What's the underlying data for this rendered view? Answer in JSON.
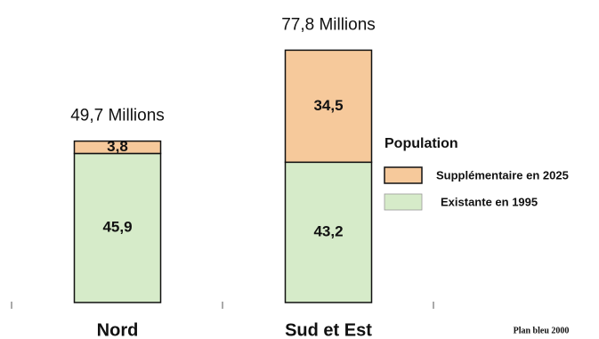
{
  "chart_data": {
    "type": "stacked_bar",
    "categories": [
      "Nord",
      "Sud et Est"
    ],
    "series": [
      {
        "name": "Existante en 1995",
        "color": "#d6ebc9",
        "values": [
          45.9,
          43.2
        ],
        "value_labels": [
          "45,9",
          "43,2"
        ]
      },
      {
        "name": "Supplémentaire en 2025",
        "color": "#f6c99b",
        "values": [
          3.8,
          34.5
        ],
        "value_labels": [
          "3,8",
          "34,5"
        ]
      }
    ],
    "annotations": [
      "49,7 Millions",
      "77,8 Millions"
    ],
    "legend_title": "Population",
    "legend": "right",
    "source": "Plan bleu 2000"
  }
}
